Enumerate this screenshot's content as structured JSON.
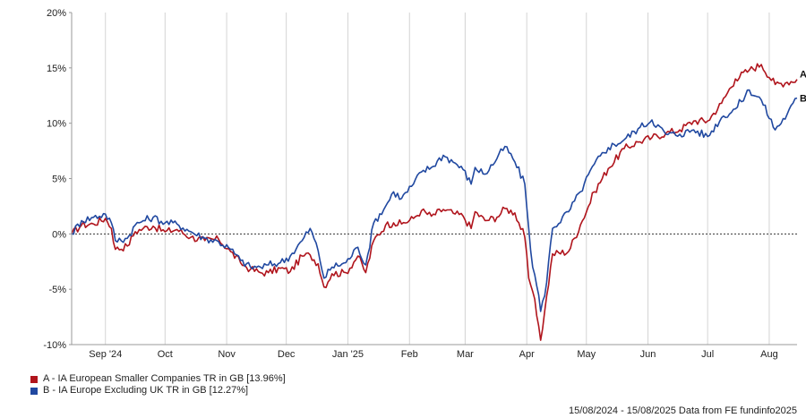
{
  "footer": {
    "date_range": "15/08/2024 - 15/08/2025",
    "source": "Data from FE fundinfo2025"
  },
  "chart_data": {
    "type": "line",
    "title": "",
    "xlabel": "",
    "ylabel": "",
    "ylim": [
      -10,
      20
    ],
    "yticks": [
      -10,
      -5,
      0,
      5,
      10,
      15,
      20
    ],
    "ytick_labels": [
      "-10%",
      "-5%",
      "0%",
      "5%",
      "10%",
      "15%",
      "20%"
    ],
    "xlim": [
      "2024-08-15",
      "2025-08-15"
    ],
    "xticks": [
      "2024-09-01",
      "2024-10-01",
      "2024-11-01",
      "2024-12-01",
      "2025-01-01",
      "2025-02-01",
      "2025-03-01",
      "2025-04-01",
      "2025-05-01",
      "2025-06-01",
      "2025-07-01",
      "2025-08-01"
    ],
    "xtick_labels": [
      "Sep '24",
      "Oct",
      "Nov",
      "Dec",
      "Jan '25",
      "Feb",
      "Mar",
      "Apr",
      "May",
      "Jun",
      "Jul",
      "Aug"
    ],
    "grid": "vertical",
    "zero_line": "dotted",
    "legend_position": "bottom-left",
    "series": [
      {
        "name": "A - IA European Smaller Companies TR in GB [13.96%]",
        "end_label": "A",
        "color": "#b0141c",
        "x": [
          "2024-08-15",
          "2024-08-20",
          "2024-08-26",
          "2024-09-01",
          "2024-09-04",
          "2024-09-06",
          "2024-09-12",
          "2024-09-16",
          "2024-09-20",
          "2024-09-25",
          "2024-10-01",
          "2024-10-07",
          "2024-10-14",
          "2024-10-21",
          "2024-10-28",
          "2024-11-03",
          "2024-11-08",
          "2024-11-13",
          "2024-11-18",
          "2024-11-22",
          "2024-11-28",
          "2024-12-03",
          "2024-12-09",
          "2024-12-13",
          "2024-12-17",
          "2024-12-20",
          "2024-12-24",
          "2024-12-31",
          "2025-01-06",
          "2025-01-10",
          "2025-01-14",
          "2025-01-20",
          "2025-01-24",
          "2025-01-28",
          "2025-02-03",
          "2025-02-07",
          "2025-02-12",
          "2025-02-18",
          "2025-02-24",
          "2025-02-28",
          "2025-03-04",
          "2025-03-06",
          "2025-03-11",
          "2025-03-17",
          "2025-03-21",
          "2025-03-26",
          "2025-03-31",
          "2025-04-02",
          "2025-04-04",
          "2025-04-07",
          "2025-04-08",
          "2025-04-10",
          "2025-04-14",
          "2025-04-22",
          "2025-04-28",
          "2025-05-05",
          "2025-05-12",
          "2025-05-20",
          "2025-05-27",
          "2025-06-03",
          "2025-06-10",
          "2025-06-17",
          "2025-06-24",
          "2025-07-01",
          "2025-07-08",
          "2025-07-15",
          "2025-07-22",
          "2025-07-28",
          "2025-08-04",
          "2025-08-10",
          "2025-08-15"
        ],
        "y": [
          0,
          0.8,
          0.9,
          1.4,
          0.5,
          -1.4,
          -1.1,
          0.2,
          0.5,
          0.7,
          0.2,
          0.4,
          -0.3,
          -0.6,
          -0.5,
          -1.6,
          -2.6,
          -3.2,
          -3.5,
          -3.5,
          -3.1,
          -3.4,
          -2.0,
          -1.9,
          -2.7,
          -4.8,
          -3.6,
          -3.5,
          -2.0,
          -3.5,
          -0.6,
          0.8,
          1.0,
          0.9,
          1.4,
          2.1,
          1.6,
          2.2,
          1.8,
          1.6,
          0.5,
          2.0,
          1.2,
          1.5,
          2.3,
          1.9,
          -0.3,
          -4.0,
          -5.2,
          -8.3,
          -9.6,
          -7.0,
          -1.8,
          -1.6,
          0.8,
          3.8,
          5.9,
          7.7,
          8.3,
          8.7,
          9.1,
          9.4,
          10.2,
          10.2,
          11.8,
          14.0,
          14.8,
          15.3,
          13.5,
          13.7,
          13.96
        ]
      },
      {
        "name": "B - IA Europe Excluding UK TR in GB [12.27%]",
        "end_label": "B",
        "color": "#2048a0",
        "x": [
          "2024-08-15",
          "2024-08-20",
          "2024-08-26",
          "2024-09-01",
          "2024-09-04",
          "2024-09-06",
          "2024-09-12",
          "2024-09-16",
          "2024-09-20",
          "2024-09-25",
          "2024-10-01",
          "2024-10-07",
          "2024-10-14",
          "2024-10-21",
          "2024-10-28",
          "2024-11-03",
          "2024-11-08",
          "2024-11-13",
          "2024-11-18",
          "2024-11-22",
          "2024-11-28",
          "2024-12-03",
          "2024-12-09",
          "2024-12-13",
          "2024-12-17",
          "2024-12-20",
          "2024-12-24",
          "2024-12-31",
          "2025-01-06",
          "2025-01-10",
          "2025-01-14",
          "2025-01-20",
          "2025-01-24",
          "2025-01-28",
          "2025-02-03",
          "2025-02-07",
          "2025-02-12",
          "2025-02-18",
          "2025-02-24",
          "2025-02-28",
          "2025-03-04",
          "2025-03-06",
          "2025-03-11",
          "2025-03-17",
          "2025-03-21",
          "2025-03-26",
          "2025-03-31",
          "2025-04-02",
          "2025-04-04",
          "2025-04-07",
          "2025-04-08",
          "2025-04-10",
          "2025-04-14",
          "2025-04-22",
          "2025-04-28",
          "2025-05-05",
          "2025-05-12",
          "2025-05-20",
          "2025-05-27",
          "2025-06-03",
          "2025-06-10",
          "2025-06-17",
          "2025-06-24",
          "2025-07-01",
          "2025-07-08",
          "2025-07-15",
          "2025-07-22",
          "2025-07-28",
          "2025-08-04",
          "2025-08-10",
          "2025-08-15"
        ],
        "y": [
          0,
          1.2,
          1.5,
          1.8,
          1.0,
          -0.6,
          -0.4,
          0.8,
          1.2,
          1.5,
          1.0,
          0.9,
          0.2,
          -0.4,
          -0.7,
          -1.4,
          -2.4,
          -3.0,
          -3.0,
          -2.8,
          -2.6,
          -2.0,
          -0.6,
          0.5,
          -1.5,
          -4.0,
          -3.0,
          -2.6,
          -1.2,
          -2.8,
          1.0,
          2.5,
          3.8,
          3.2,
          4.5,
          5.6,
          6.0,
          7.1,
          6.4,
          5.8,
          4.5,
          6.0,
          5.4,
          6.8,
          7.9,
          6.5,
          4.5,
          0.5,
          -3.0,
          -5.5,
          -7.0,
          -5.6,
          0.5,
          2.0,
          3.8,
          6.3,
          7.8,
          8.5,
          9.5,
          10.3,
          9.0,
          9.0,
          9.4,
          8.8,
          10.5,
          11.3,
          13.0,
          12.1,
          9.4,
          10.8,
          12.27
        ]
      }
    ]
  }
}
